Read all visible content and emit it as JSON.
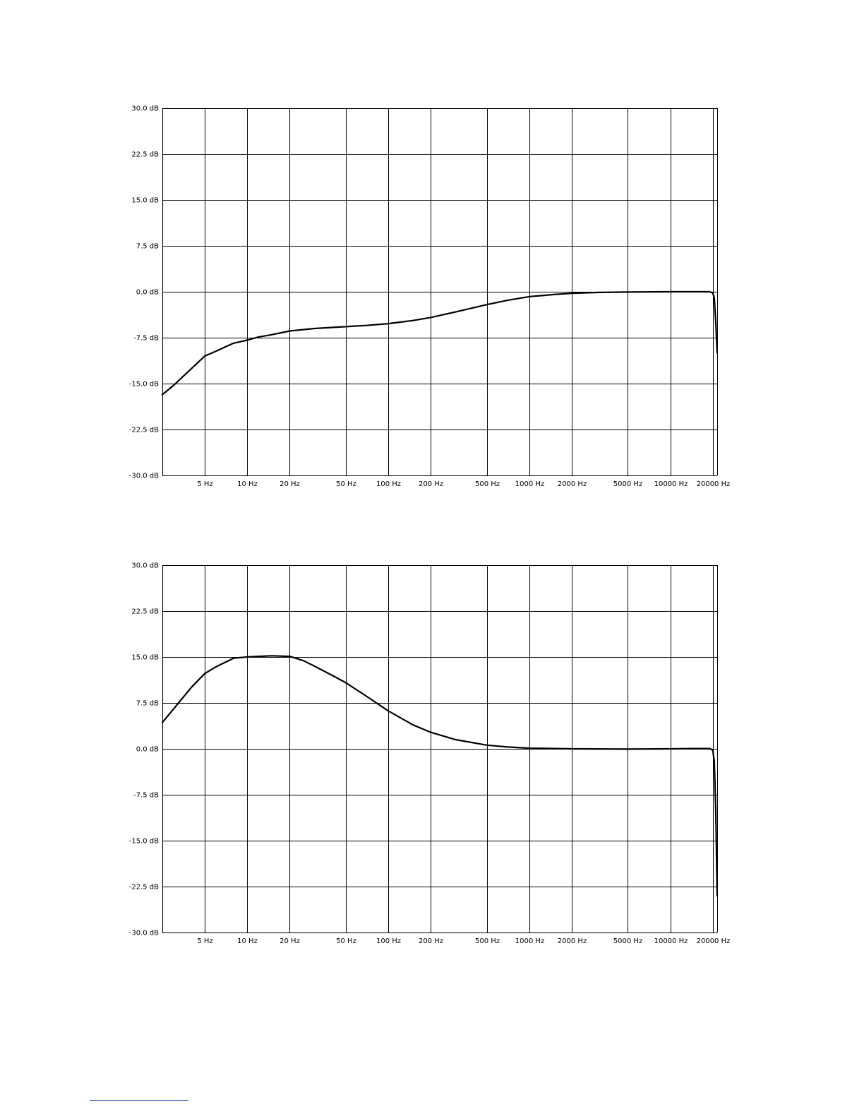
{
  "chart_data": [
    {
      "type": "line",
      "y_ticks": [
        "30.0 dB",
        "22.5 dB",
        "15.0 dB",
        "7.5 dB",
        "0.0 dB",
        "-7.5 dB",
        "-15.0 dB",
        "-22.5 dB",
        "-30.0 dB"
      ],
      "y_tick_values": [
        30,
        22.5,
        15,
        7.5,
        0,
        -7.5,
        -15,
        -22.5,
        -30
      ],
      "x_ticks": [
        "5 Hz",
        "10 Hz",
        "20 Hz",
        "50 Hz",
        "100 Hz",
        "200 Hz",
        "500 Hz",
        "1000 Hz",
        "2000 Hz",
        "5000 Hz",
        "10000 Hz",
        "20000 Hz"
      ],
      "x_tick_values": [
        5,
        10,
        20,
        50,
        100,
        200,
        500,
        1000,
        2000,
        5000,
        10000,
        20000
      ],
      "xlim": [
        2.5,
        21500
      ],
      "ylim": [
        -30,
        30
      ],
      "x_scale": "log",
      "grid": true,
      "series": [
        {
          "x": [
            2.5,
            3,
            4,
            5,
            6,
            7,
            8,
            10,
            12,
            15,
            20,
            30,
            50,
            70,
            100,
            150,
            200,
            300,
            500,
            700,
            1000,
            1500,
            2000,
            3000,
            5000,
            10000,
            15000,
            19000,
            20000,
            20500,
            21000,
            21500
          ],
          "y": [
            -16.8,
            -15.3,
            -12.6,
            -10.5,
            -9.7,
            -9.0,
            -8.4,
            -7.9,
            -7.4,
            -7.0,
            -6.4,
            -6.0,
            -5.7,
            -5.5,
            -5.2,
            -4.7,
            -4.2,
            -3.3,
            -2.1,
            -1.4,
            -0.8,
            -0.45,
            -0.25,
            -0.12,
            -0.05,
            0,
            0,
            0,
            -0.2,
            -1.0,
            -5.0,
            -10.0
          ]
        }
      ]
    },
    {
      "type": "line",
      "y_ticks": [
        "30.0 dB",
        "22.5 dB",
        "15.0 dB",
        "7.5 dB",
        "0.0 dB",
        "-7.5 dB",
        "-15.0 dB",
        "-22.5 dB",
        "-30.0 dB"
      ],
      "y_tick_values": [
        30,
        22.5,
        15,
        7.5,
        0,
        -7.5,
        -15,
        -22.5,
        -30
      ],
      "x_ticks": [
        "5 Hz",
        "10 Hz",
        "20 Hz",
        "50 Hz",
        "100 Hz",
        "200 Hz",
        "500 Hz",
        "1000 Hz",
        "2000 Hz",
        "5000 Hz",
        "10000 Hz",
        "20000 Hz"
      ],
      "x_tick_values": [
        5,
        10,
        20,
        50,
        100,
        200,
        500,
        1000,
        2000,
        5000,
        10000,
        20000
      ],
      "xlim": [
        2.5,
        21500
      ],
      "ylim": [
        -30,
        30
      ],
      "x_scale": "log",
      "grid": true,
      "series": [
        {
          "x": [
            2.5,
            3,
            4,
            5,
            6,
            8,
            10,
            12,
            15,
            20,
            25,
            30,
            40,
            50,
            70,
            100,
            150,
            200,
            300,
            500,
            700,
            1000,
            2000,
            5000,
            10000,
            15000,
            19000,
            20000,
            20500,
            21000,
            21500
          ],
          "y": [
            4.3,
            6.5,
            10.0,
            12.3,
            13.4,
            14.8,
            15.0,
            15.1,
            15.2,
            15.1,
            14.4,
            13.5,
            12.0,
            10.8,
            8.6,
            6.2,
            3.9,
            2.7,
            1.5,
            0.6,
            0.3,
            0.1,
            0.0,
            -0.05,
            0,
            0.05,
            0.05,
            -0.2,
            -2.0,
            -10.0,
            -24.0
          ]
        }
      ]
    }
  ]
}
